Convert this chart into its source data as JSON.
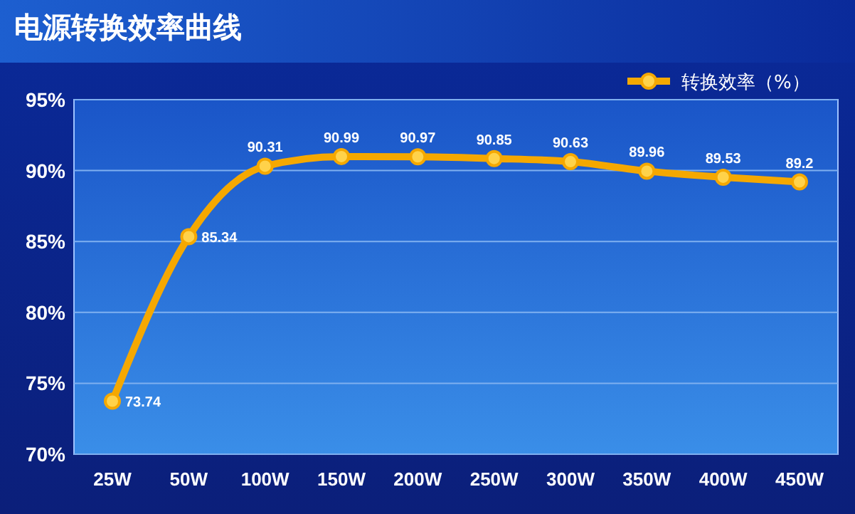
{
  "chart_data": {
    "type": "line",
    "title": "电源转换效率曲线",
    "categories": [
      "25W",
      "50W",
      "100W",
      "150W",
      "200W",
      "250W",
      "300W",
      "350W",
      "400W",
      "450W"
    ],
    "series": [
      {
        "name": "转换效率（%）",
        "color": "#f5a800",
        "values": [
          73.74,
          85.34,
          90.31,
          90.99,
          90.97,
          90.85,
          90.63,
          89.96,
          89.53,
          89.2
        ]
      }
    ],
    "ylim": [
      70,
      95
    ],
    "yticks": [
      {
        "value": 70,
        "label": "70%"
      },
      {
        "value": 75,
        "label": "75%"
      },
      {
        "value": 80,
        "label": "80%"
      },
      {
        "value": 85,
        "label": "85%"
      },
      {
        "value": 90,
        "label": "90%"
      },
      {
        "value": 95,
        "label": "95%"
      }
    ],
    "grid": "y",
    "legend": "top right",
    "marker": "circle",
    "data_labels": true
  }
}
